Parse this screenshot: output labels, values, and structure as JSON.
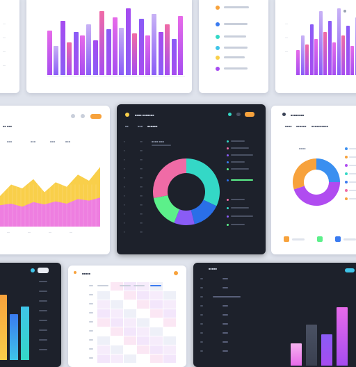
{
  "palette": {
    "purple": "#a64cf0",
    "magenta": "#e76be9",
    "pink": "#f06ba6",
    "violet": "#8a5cf6",
    "lavender": "#c8b2f5",
    "teal": "#34d8c6",
    "green": "#5cf08a",
    "yellow": "#f9cf4a",
    "orange": "#f7a23c",
    "blue": "#3a7bf0",
    "cyan": "#3fc4e8"
  },
  "cards": {
    "top_left_bars": [
      62,
      40,
      75,
      45,
      60,
      55,
      70,
      48,
      88,
      63,
      80,
      65,
      92,
      58,
      78,
      55,
      85,
      60,
      70,
      50,
      82
    ],
    "top_right_bars": [
      35,
      55,
      42,
      70,
      50,
      88,
      60,
      75,
      45,
      92,
      55,
      68,
      40,
      80
    ],
    "mid_left": {
      "area_yellow": [
        40,
        55,
        50,
        62,
        45,
        58,
        52,
        68,
        60,
        78
      ],
      "area_pink": [
        28,
        30,
        26,
        32,
        29,
        33,
        30,
        36,
        34,
        38
      ]
    },
    "mid_center": {
      "donut": [
        {
          "value": 32,
          "color": "#34d8c6"
        },
        {
          "value": 14,
          "color": "#2a6fe8"
        },
        {
          "value": 10,
          "color": "#8a5cf6"
        },
        {
          "value": 16,
          "color": "#5cf08a"
        },
        {
          "value": 28,
          "color": "#f06ba6"
        }
      ]
    },
    "mid_right": {
      "donut": [
        {
          "value": 25,
          "color": "#3a8ff0"
        },
        {
          "value": 45,
          "color": "#b04cf0"
        },
        {
          "value": 30,
          "color": "#f7a23c"
        }
      ]
    },
    "bottom_left_bars": [
      85,
      60,
      70
    ],
    "bottom_right_bars": [
      30,
      55,
      42,
      78
    ]
  }
}
